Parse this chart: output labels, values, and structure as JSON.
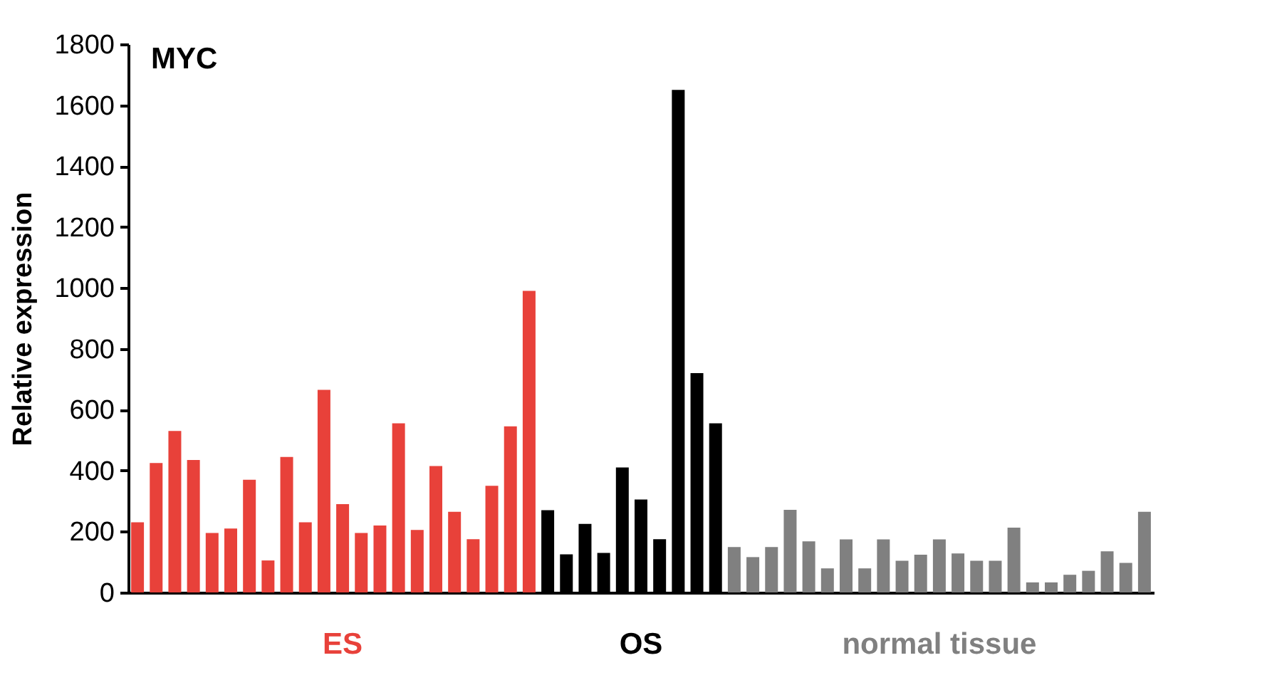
{
  "chart_data": {
    "type": "bar",
    "title": "MYC",
    "ylabel": "Relative expression",
    "categories": [
      null,
      null,
      null,
      null,
      null,
      null,
      null,
      null,
      null,
      null,
      null,
      null,
      null,
      null,
      null,
      null,
      null,
      null,
      null,
      null,
      null,
      null,
      null,
      null,
      null,
      null,
      null,
      null,
      null,
      null,
      null,
      null,
      null,
      null,
      null,
      null,
      null,
      null,
      null,
      null,
      null,
      null,
      null,
      null,
      null,
      null,
      null,
      null,
      null,
      null,
      null,
      null,
      null,
      null,
      null
    ],
    "series": [
      {
        "name": "ES",
        "color": "#e8413a",
        "values": [
          230,
          425,
          530,
          435,
          195,
          210,
          370,
          105,
          445,
          230,
          665,
          290,
          195,
          220,
          555,
          205,
          415,
          265,
          175,
          350,
          545,
          990,
          null,
          null,
          null,
          null,
          null,
          null,
          null,
          null,
          null,
          null,
          null,
          null,
          null,
          null,
          null,
          null,
          null,
          null,
          null,
          null,
          null,
          null,
          null,
          null,
          null,
          null,
          null,
          null,
          null,
          null,
          null,
          null,
          null
        ]
      },
      {
        "name": "OS",
        "color": "#000000",
        "values": [
          null,
          null,
          null,
          null,
          null,
          null,
          null,
          null,
          null,
          null,
          null,
          null,
          null,
          null,
          null,
          null,
          null,
          null,
          null,
          null,
          null,
          null,
          270,
          125,
          225,
          130,
          410,
          305,
          175,
          1650,
          720,
          555,
          null,
          null,
          null,
          null,
          null,
          null,
          null,
          null,
          null,
          null,
          null,
          null,
          null,
          null,
          null,
          null,
          null,
          null,
          null,
          null,
          null,
          null,
          null
        ]
      },
      {
        "name": "normal tissue",
        "color": "#808080",
        "values": [
          null,
          null,
          null,
          null,
          null,
          null,
          null,
          null,
          null,
          null,
          null,
          null,
          null,
          null,
          null,
          null,
          null,
          null,
          null,
          null,
          null,
          null,
          null,
          null,
          null,
          null,
          null,
          null,
          null,
          null,
          null,
          null,
          149,
          116,
          149,
          271,
          168,
          79,
          174,
          79,
          174,
          104,
          124,
          174,
          128,
          104,
          104,
          213,
          33,
          33,
          58,
          71,
          135,
          97,
          265
        ]
      }
    ],
    "ylim": [
      0,
      1800
    ],
    "yticks": [
      0,
      200,
      400,
      600,
      800,
      1000,
      1200,
      1400,
      1600,
      1800
    ],
    "grid": false,
    "legend": false
  }
}
